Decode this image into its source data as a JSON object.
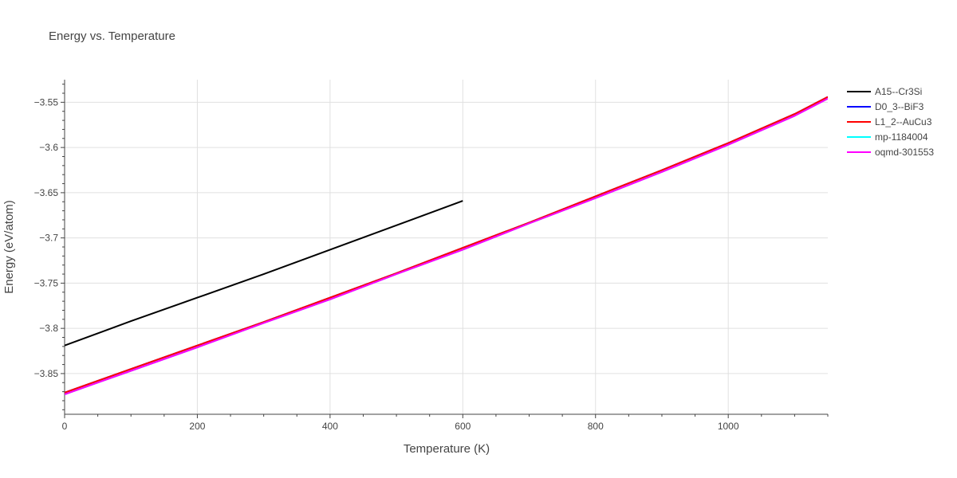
{
  "chart_data": {
    "type": "line",
    "title": "Energy vs. Temperature",
    "xlabel": "Temperature (K)",
    "ylabel": "Energy (eV/atom)",
    "xlim": [
      0,
      1150
    ],
    "ylim": [
      -3.895,
      -3.525
    ],
    "xticks": [
      0,
      200,
      400,
      600,
      800,
      1000
    ],
    "xtick_labels": [
      "0",
      "200",
      "400",
      "600",
      "800",
      "1000"
    ],
    "yticks": [
      -3.85,
      -3.8,
      -3.75,
      -3.7,
      -3.65,
      -3.6,
      -3.55
    ],
    "ytick_labels": [
      "−3.85",
      "−3.8",
      "−3.75",
      "−3.7",
      "−3.65",
      "−3.6",
      "−3.55"
    ],
    "grid": true,
    "legend_position": "top-right",
    "series": [
      {
        "name": "A15--Cr3Si",
        "color": "#000000",
        "x": [
          0,
          100,
          200,
          300,
          400,
          500,
          600
        ],
        "y": [
          -3.819,
          -3.792,
          -3.766,
          -3.74,
          -3.713,
          -3.686,
          -3.659
        ]
      },
      {
        "name": "D0_3--BiF3",
        "color": "#0000ff",
        "x": [
          0,
          100,
          200,
          300,
          400,
          500,
          600,
          700,
          800,
          900,
          1000,
          1100,
          1150
        ],
        "y": [
          -3.871,
          -3.845,
          -3.819,
          -3.793,
          -3.766,
          -3.739,
          -3.711,
          -3.683,
          -3.654,
          -3.625,
          -3.595,
          -3.563,
          -3.544
        ]
      },
      {
        "name": "L1_2--AuCu3",
        "color": "#ff0000",
        "x": [
          0,
          100,
          200,
          300,
          400,
          500,
          600,
          700,
          800,
          900,
          1000,
          1100,
          1150
        ],
        "y": [
          -3.871,
          -3.845,
          -3.819,
          -3.793,
          -3.766,
          -3.739,
          -3.711,
          -3.683,
          -3.654,
          -3.625,
          -3.595,
          -3.563,
          -3.544
        ]
      },
      {
        "name": "mp-1184004",
        "color": "#00ffff",
        "x": [
          0,
          100,
          200,
          300,
          400,
          500,
          600,
          700,
          800,
          900,
          1000,
          1100,
          1150
        ],
        "y": [
          -3.873,
          -3.847,
          -3.821,
          -3.794,
          -3.768,
          -3.74,
          -3.713,
          -3.684,
          -3.656,
          -3.627,
          -3.597,
          -3.565,
          -3.546
        ]
      },
      {
        "name": "oqmd-301553",
        "color": "#ff00ff",
        "x": [
          0,
          100,
          200,
          300,
          400,
          500,
          600,
          700,
          800,
          900,
          1000,
          1100,
          1150
        ],
        "y": [
          -3.873,
          -3.847,
          -3.821,
          -3.794,
          -3.768,
          -3.74,
          -3.713,
          -3.684,
          -3.656,
          -3.627,
          -3.597,
          -3.565,
          -3.546
        ]
      }
    ]
  }
}
